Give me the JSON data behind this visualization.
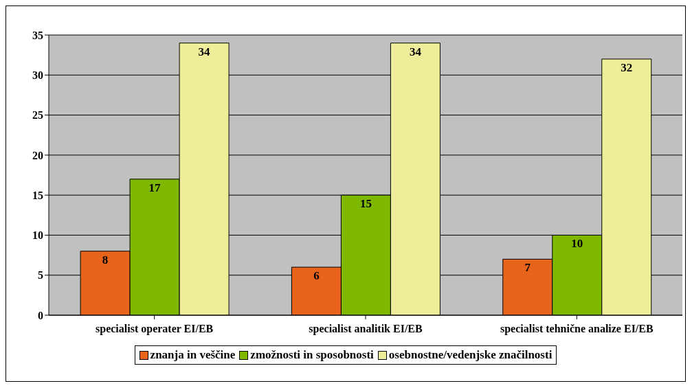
{
  "chart_data": {
    "type": "bar",
    "categories": [
      "specialist operater EI/EB",
      "specialist analitik EI/EB",
      "specialist tehnične analize EI/EB"
    ],
    "series": [
      {
        "name": "znanja in veščine",
        "color": "#e8641c",
        "values": [
          8,
          6,
          7
        ]
      },
      {
        "name": "zmožnosti in sposobnosti",
        "color": "#7fb800",
        "values": [
          17,
          15,
          10
        ]
      },
      {
        "name": "osebnostne/vedenjske značilnosti",
        "color": "#eeee9a",
        "values": [
          34,
          34,
          32
        ]
      }
    ],
    "ylim": [
      0,
      35
    ],
    "yticks": [
      0,
      5,
      10,
      15,
      20,
      25,
      30,
      35
    ],
    "grid": "y",
    "legend": "bottom",
    "data_labels": true
  }
}
